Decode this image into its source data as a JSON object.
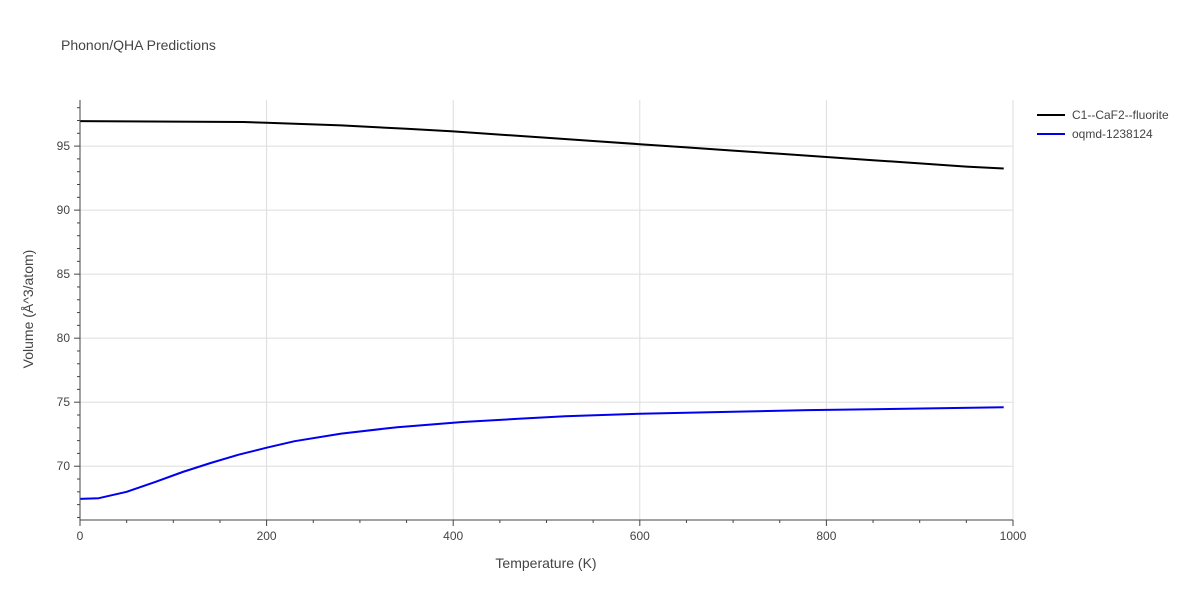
{
  "chart_data": {
    "type": "line",
    "title": "Phonon/QHA Predictions",
    "xlabel": "Temperature (K)",
    "ylabel": "Volume (Å^3/atom)",
    "xlim": [
      0,
      1000
    ],
    "ylim": [
      65.8,
      98.6
    ],
    "xticks": [
      0,
      200,
      400,
      600,
      800,
      1000
    ],
    "yticks": [
      70,
      75,
      80,
      85,
      90,
      95
    ],
    "grid": true,
    "legend_position": "top-right",
    "series": [
      {
        "name": "C1--CaF2--fluorite",
        "color": "#000000",
        "x": [
          0,
          50,
          100,
          175,
          200,
          280,
          350,
          400,
          450,
          500,
          550,
          600,
          650,
          700,
          750,
          800,
          850,
          900,
          950,
          990
        ],
        "y": [
          96.95,
          96.93,
          96.91,
          96.88,
          96.82,
          96.62,
          96.35,
          96.15,
          95.9,
          95.65,
          95.4,
          95.15,
          94.9,
          94.65,
          94.4,
          94.15,
          93.9,
          93.65,
          93.4,
          93.25
        ]
      },
      {
        "name": "oqmd-1238124",
        "color": "#0000ee",
        "x": [
          0,
          20,
          50,
          80,
          110,
          140,
          170,
          200,
          230,
          280,
          340,
          410,
          470,
          520,
          600,
          700,
          780,
          850,
          920,
          990
        ],
        "y": [
          67.45,
          67.5,
          68.0,
          68.75,
          69.55,
          70.25,
          70.9,
          71.45,
          71.95,
          72.55,
          73.05,
          73.45,
          73.7,
          73.9,
          74.1,
          74.25,
          74.38,
          74.45,
          74.52,
          74.6
        ]
      }
    ]
  }
}
